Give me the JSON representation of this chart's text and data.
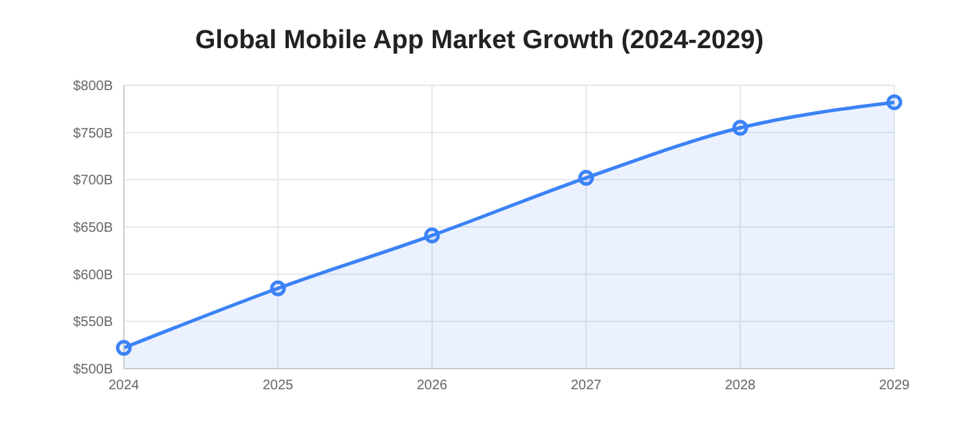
{
  "chart_data": {
    "type": "area",
    "title": "Global Mobile App Market Growth (2024-2029)",
    "categories": [
      "2024",
      "2025",
      "2026",
      "2027",
      "2028",
      "2029"
    ],
    "series": [
      {
        "color": "#3b82f6",
        "values": [
          522,
          585,
          641,
          702,
          755,
          782
        ]
      }
    ],
    "ylim": [
      500,
      800
    ],
    "yticks": [
      {
        "value": 500,
        "label": "$500B"
      },
      {
        "value": 550,
        "label": "$550B"
      },
      {
        "value": 600,
        "label": "$600B"
      },
      {
        "value": 650,
        "label": "$650B"
      },
      {
        "value": 700,
        "label": "$700B"
      },
      {
        "value": 750,
        "label": "$750B"
      },
      {
        "value": 800,
        "label": "$800B"
      }
    ],
    "grid": true,
    "marker": "circle",
    "line_style": "solid",
    "legend": false
  }
}
